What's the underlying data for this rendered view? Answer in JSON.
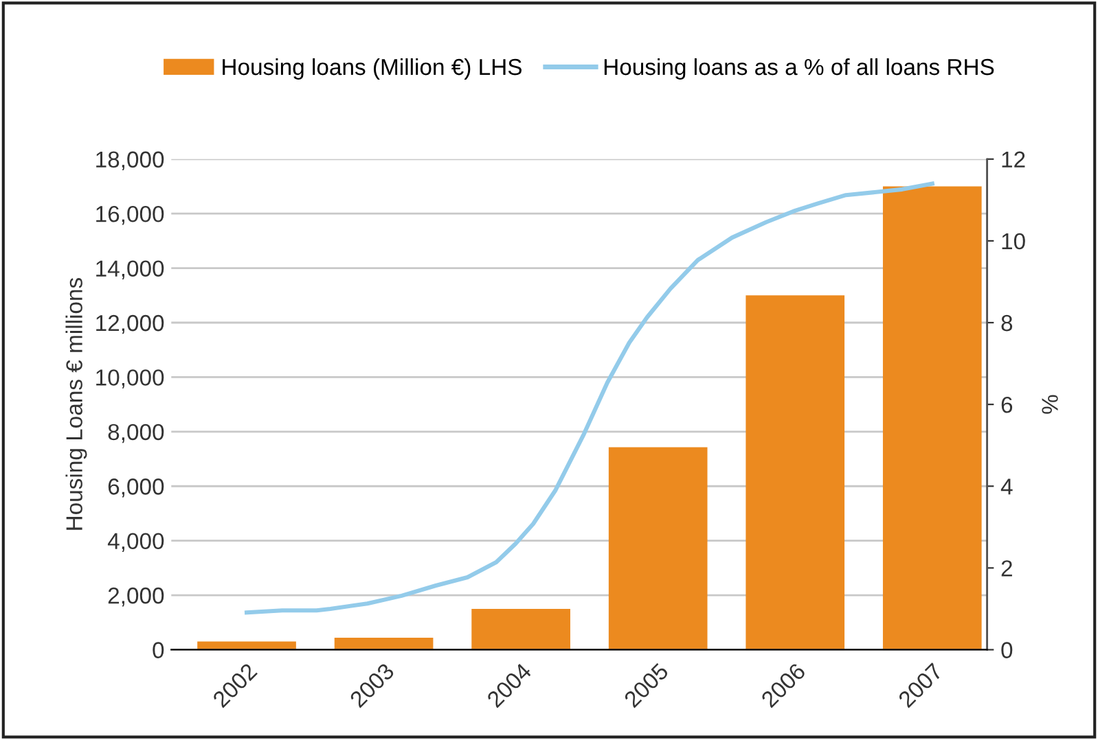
{
  "chart_data": {
    "type": "bar",
    "xlabel": null,
    "ylabel": "Housing Loans € millions",
    "y2label": "%",
    "xlim": [
      2001.45,
      2007.4
    ],
    "xticks": [
      2002,
      2003,
      2004,
      2005,
      2006,
      2007
    ],
    "ylim": [
      0,
      18000
    ],
    "yticks": [
      {
        "value": 0,
        "label": "0"
      },
      {
        "value": 2000,
        "label": "2,000"
      },
      {
        "value": 4000,
        "label": "4,000"
      },
      {
        "value": 6000,
        "label": "6,000"
      },
      {
        "value": 8000,
        "label": "8,000"
      },
      {
        "value": 10000,
        "label": "10,000"
      },
      {
        "value": 12000,
        "label": "12,000"
      },
      {
        "value": 14000,
        "label": "14,000"
      },
      {
        "value": 16000,
        "label": "16,000"
      },
      {
        "value": 18000,
        "label": "18,000"
      }
    ],
    "y2lim": [
      0,
      12
    ],
    "y2ticks": [
      0,
      2,
      4,
      6,
      8,
      10,
      12
    ],
    "grid": "y",
    "legend": "top",
    "series": [
      {
        "name": "Housing loans (Million €) LHS",
        "color": "#ec8a1f",
        "x": [
          2002,
          2003,
          2004,
          2005,
          2006,
          2007
        ],
        "values": [
          300,
          440,
          1500,
          7430,
          13000,
          17000
        ]
      },
      {
        "name": "Housing loans as a % of all loans RHS",
        "type": "line",
        "axis": "y2",
        "color": "#93cbea",
        "x": [
          2002.0,
          2002.26,
          2002.51,
          2002.61,
          2002.88,
          2003.13,
          2003.38,
          2003.61,
          2003.82,
          2003.96,
          2004.09,
          2004.25,
          2004.46,
          2004.63,
          2004.79,
          2004.92,
          2005.09,
          2005.29,
          2005.54,
          2005.79,
          2006.0,
          2006.17,
          2006.37,
          2006.58,
          2006.78,
          2007.0
        ],
        "values": [
          0.91,
          0.96,
          0.96,
          1.0,
          1.13,
          1.32,
          1.57,
          1.77,
          2.14,
          2.59,
          3.08,
          3.89,
          5.28,
          6.53,
          7.51,
          8.13,
          8.83,
          9.53,
          10.08,
          10.46,
          10.74,
          10.92,
          11.12,
          11.19,
          11.26,
          11.4
        ]
      }
    ]
  }
}
